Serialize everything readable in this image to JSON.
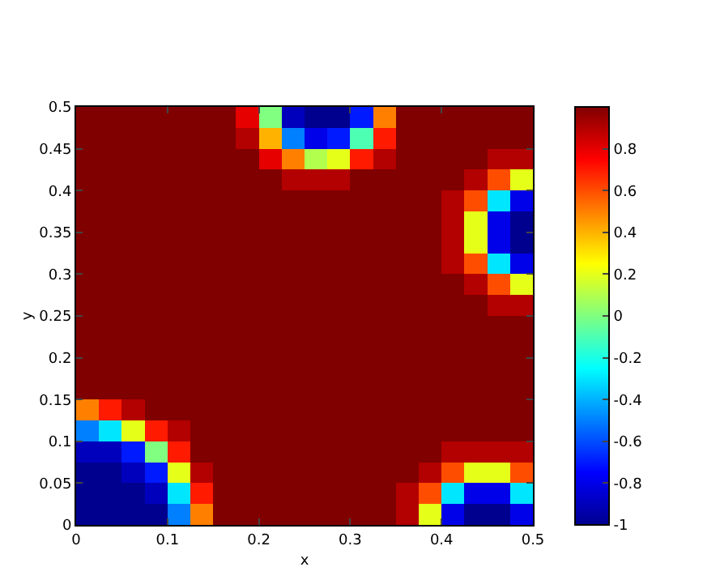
{
  "chart_data": {
    "type": "heatmap",
    "xlabel": "x",
    "ylabel": "y",
    "x": [
      0.0125,
      0.0375,
      0.0625,
      0.0875,
      0.1125,
      0.1375,
      0.1625,
      0.1875,
      0.2125,
      0.2375,
      0.2625,
      0.2875,
      0.3125,
      0.3375,
      0.3625,
      0.3875,
      0.4125,
      0.4375,
      0.4625,
      0.4875
    ],
    "cells": [
      [
        1,
        1,
        1,
        1,
        1,
        1,
        1,
        0.8,
        0,
        -0.9,
        -1,
        -1,
        -0.7,
        0.5,
        1,
        1,
        1,
        1,
        1,
        1
      ],
      [
        1,
        1,
        1,
        1,
        1,
        1,
        1,
        0.9,
        0.4,
        -0.5,
        -0.8,
        -0.7,
        -0.1,
        0.7,
        1,
        1,
        1,
        1,
        1,
        1
      ],
      [
        1,
        1,
        1,
        1,
        1,
        1,
        1,
        1,
        0.8,
        0.5,
        0.1,
        0.2,
        0.7,
        0.9,
        1,
        1,
        1,
        1,
        0.9,
        0.9
      ],
      [
        1,
        1,
        1,
        1,
        1,
        1,
        1,
        1,
        1,
        0.9,
        0.9,
        0.9,
        1,
        1,
        1,
        1,
        1,
        0.9,
        0.6,
        0.2
      ],
      [
        1,
        1,
        1,
        1,
        1,
        1,
        1,
        1,
        1,
        1,
        1,
        1,
        1,
        1,
        1,
        1,
        0.9,
        0.6,
        -0.3,
        -0.8
      ],
      [
        1,
        1,
        1,
        1,
        1,
        1,
        1,
        1,
        1,
        1,
        1,
        1,
        1,
        1,
        1,
        1,
        0.9,
        0.2,
        -0.8,
        -1
      ],
      [
        1,
        1,
        1,
        1,
        1,
        1,
        1,
        1,
        1,
        1,
        1,
        1,
        1,
        1,
        1,
        1,
        0.9,
        0.2,
        -0.8,
        -1
      ],
      [
        1,
        1,
        1,
        1,
        1,
        1,
        1,
        1,
        1,
        1,
        1,
        1,
        1,
        1,
        1,
        1,
        0.9,
        0.6,
        -0.3,
        -0.8
      ],
      [
        1,
        1,
        1,
        1,
        1,
        1,
        1,
        1,
        1,
        1,
        1,
        1,
        1,
        1,
        1,
        1,
        1,
        0.9,
        0.6,
        0.2
      ],
      [
        1,
        1,
        1,
        1,
        1,
        1,
        1,
        1,
        1,
        1,
        1,
        1,
        1,
        1,
        1,
        1,
        1,
        1,
        0.9,
        0.9
      ],
      [
        1,
        1,
        1,
        1,
        1,
        1,
        1,
        1,
        1,
        1,
        1,
        1,
        1,
        1,
        1,
        1,
        1,
        1,
        1,
        1
      ],
      [
        1,
        1,
        1,
        1,
        1,
        1,
        1,
        1,
        1,
        1,
        1,
        1,
        1,
        1,
        1,
        1,
        1,
        1,
        1,
        1
      ],
      [
        1,
        1,
        1,
        1,
        1,
        1,
        1,
        1,
        1,
        1,
        1,
        1,
        1,
        1,
        1,
        1,
        1,
        1,
        1,
        1
      ],
      [
        1,
        1,
        1,
        1,
        1,
        1,
        1,
        1,
        1,
        1,
        1,
        1,
        1,
        1,
        1,
        1,
        1,
        1,
        1,
        1
      ],
      [
        0.5,
        0.7,
        0.9,
        1,
        1,
        1,
        1,
        1,
        1,
        1,
        1,
        1,
        1,
        1,
        1,
        1,
        1,
        1,
        1,
        1
      ],
      [
        -0.5,
        -0.3,
        0.2,
        0.7,
        0.9,
        1,
        1,
        1,
        1,
        1,
        1,
        1,
        1,
        1,
        1,
        1,
        1,
        1,
        1,
        1
      ],
      [
        -0.9,
        -0.9,
        -0.7,
        0,
        0.7,
        1,
        1,
        1,
        1,
        1,
        1,
        1,
        1,
        1,
        1,
        1,
        0.9,
        0.9,
        0.9,
        0.9
      ],
      [
        -1,
        -1,
        -0.9,
        -0.7,
        0.2,
        0.9,
        1,
        1,
        1,
        1,
        1,
        1,
        1,
        1,
        1,
        0.9,
        0.6,
        0.2,
        0.2,
        0.6
      ],
      [
        -1,
        -1,
        -1,
        -0.9,
        -0.3,
        0.7,
        1,
        1,
        1,
        1,
        1,
        1,
        1,
        1,
        0.9,
        0.6,
        -0.3,
        -0.8,
        -0.8,
        -0.3
      ],
      [
        -1,
        -1,
        -1,
        -1,
        -0.5,
        0.5,
        1,
        1,
        1,
        1,
        1,
        1,
        1,
        1,
        0.9,
        0.2,
        -0.8,
        -1,
        -1,
        -0.8
      ]
    ],
    "xlim": [
      0,
      0.5
    ],
    "xticks": [
      0,
      0.1,
      0.2,
      0.3,
      0.4,
      0.5
    ],
    "ylim": [
      0,
      0.5
    ],
    "yticks": [
      0,
      0.05,
      0.1,
      0.15,
      0.2,
      0.25,
      0.3,
      0.35,
      0.4,
      0.45,
      0.5
    ],
    "clim": [
      -1,
      1
    ],
    "cticks": [
      -1,
      -0.8,
      -0.6,
      -0.4,
      -0.2,
      0,
      0.2,
      0.4,
      0.6,
      0.8
    ]
  }
}
